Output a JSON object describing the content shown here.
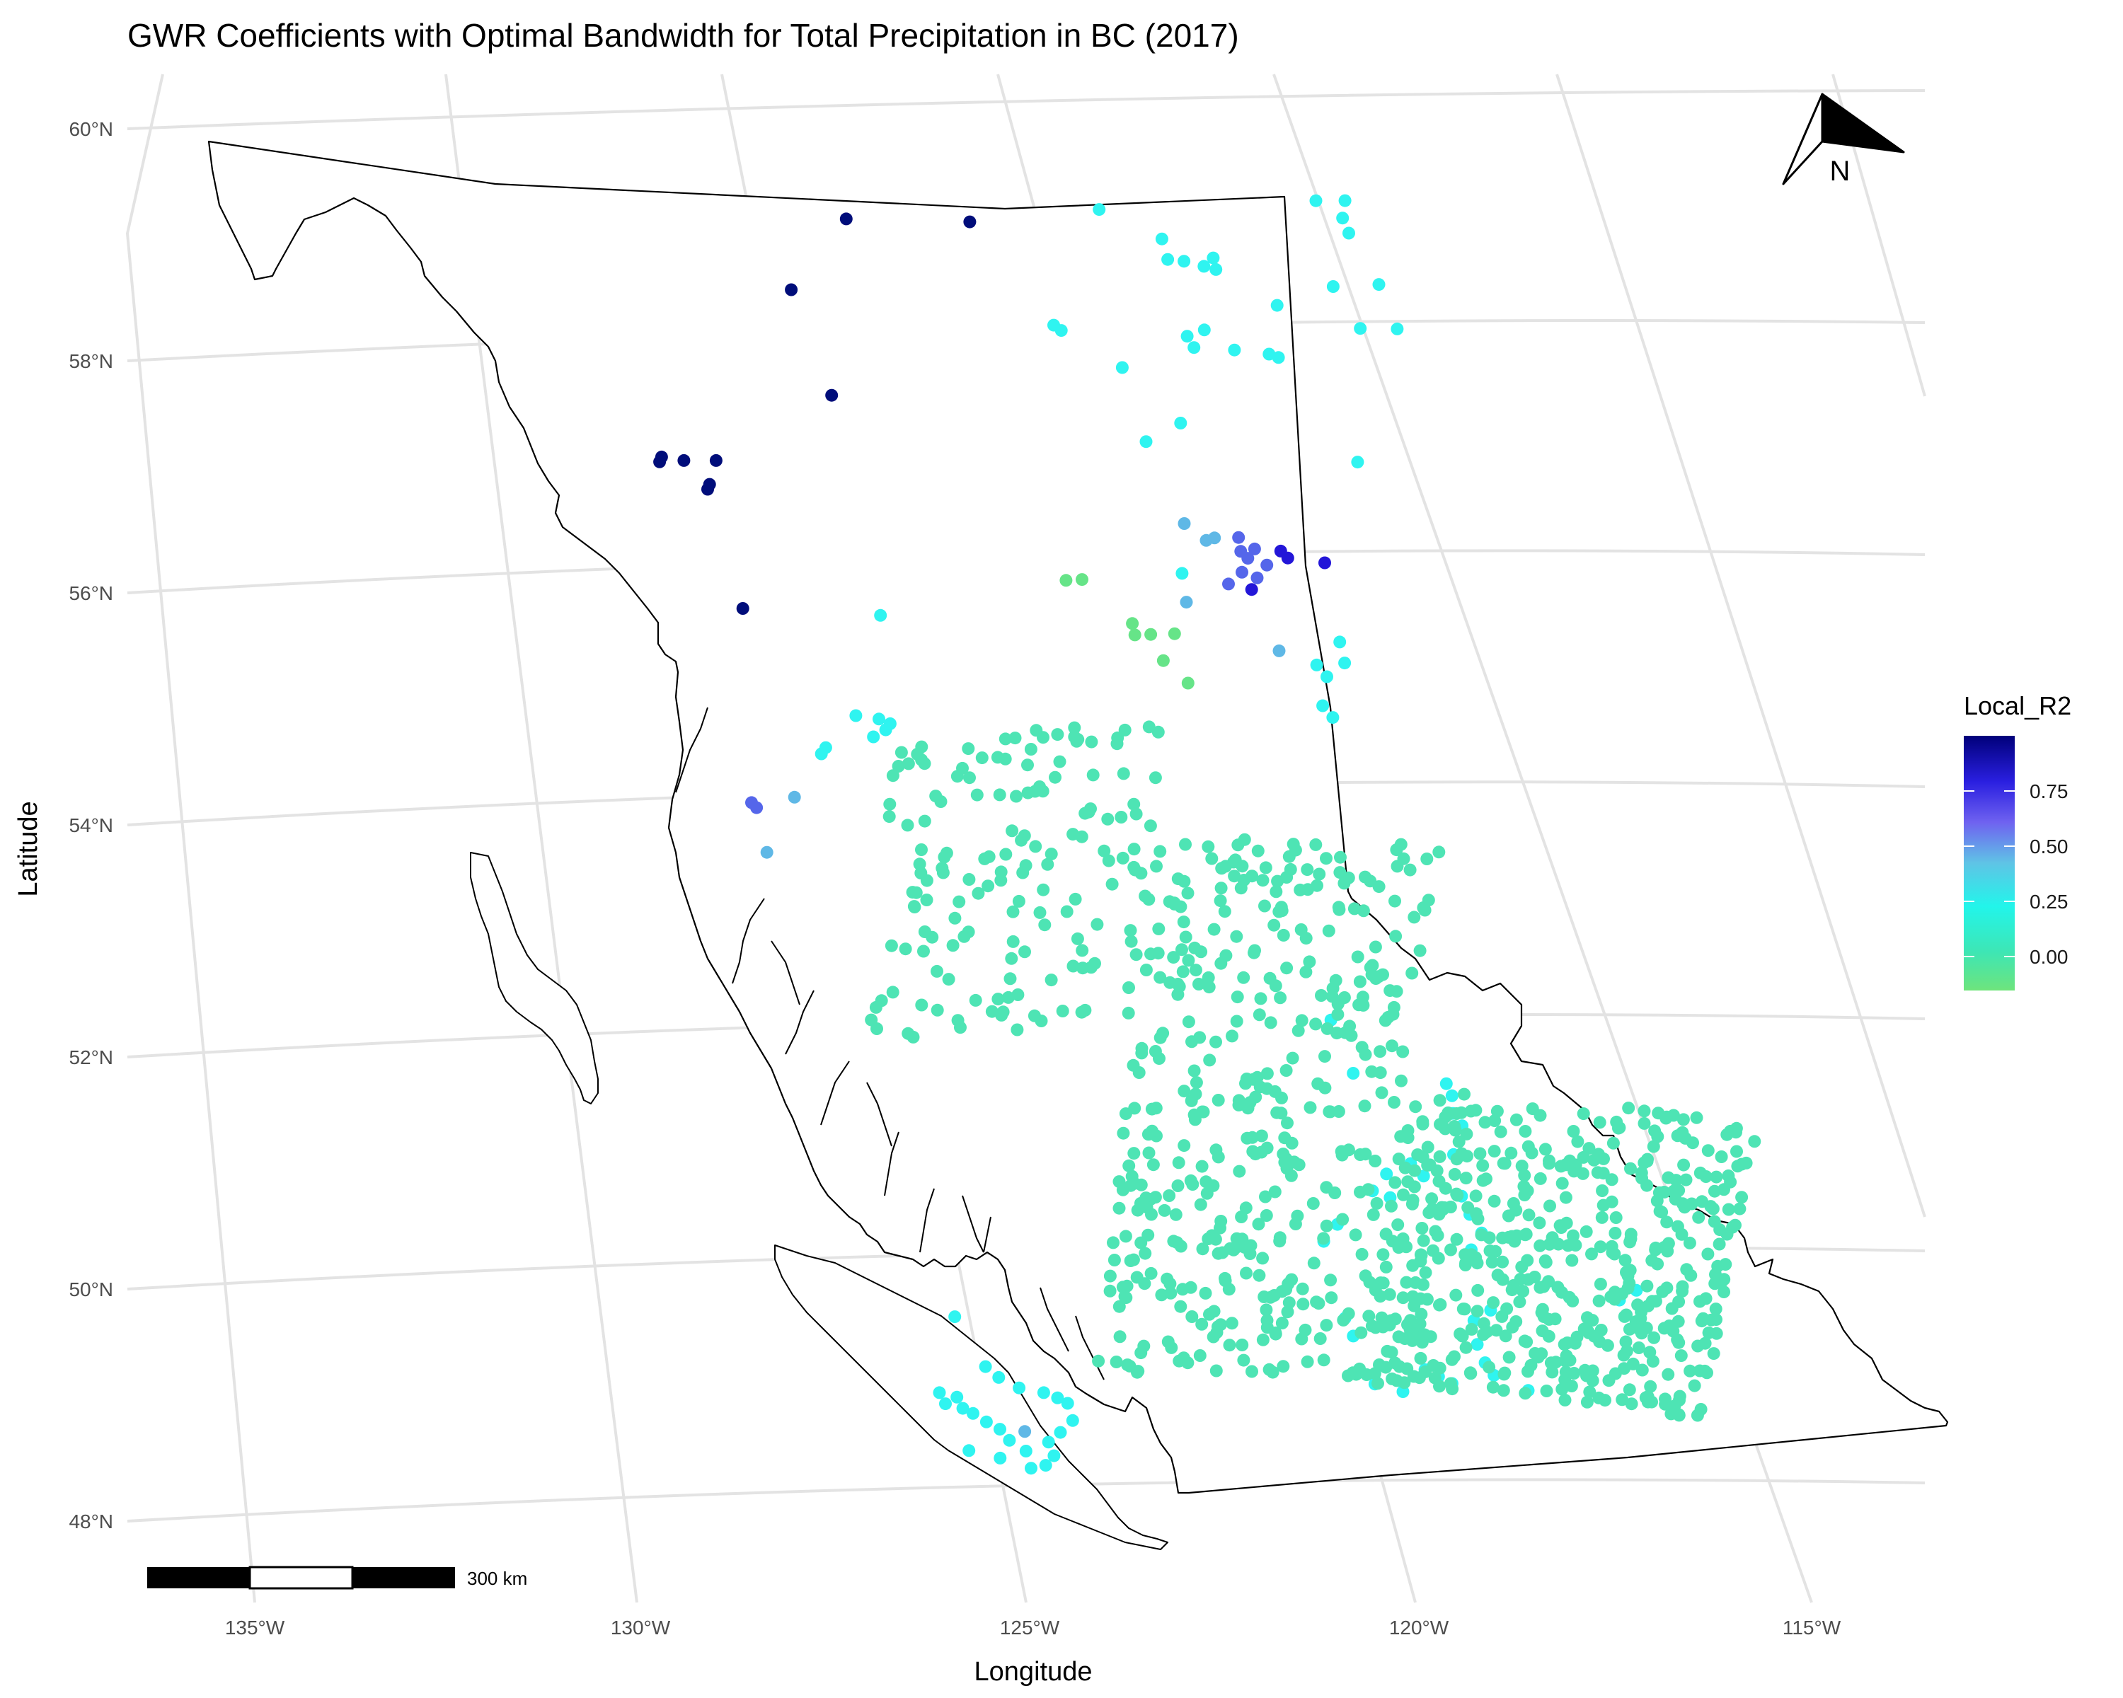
{
  "title": "GWR Coefficients with Optimal Bandwidth for Total Precipitation in BC (2017)",
  "x_axis_title": "Longitude",
  "y_axis_title": "Latitude",
  "lat_ticks": [
    "60°N",
    "58°N",
    "56°N",
    "54°N",
    "52°N",
    "50°N",
    "48°N"
  ],
  "lon_ticks": [
    "135°W",
    "130°W",
    "125°W",
    "120°W",
    "115°W"
  ],
  "legend": {
    "title": "Local_R2",
    "labels": [
      "0.75",
      "0.50",
      "0.25",
      "0.00"
    ],
    "gradient_colors": [
      "#6ee47c",
      "#3ee6b4",
      "#22f5ea",
      "#5fc4e6",
      "#6f62f0",
      "#2a1fe0",
      "#00007a"
    ]
  },
  "scale_bar": {
    "label": "300 km"
  },
  "north_arrow": {
    "label": "N"
  },
  "colors": {
    "very_high": "#000d7a",
    "high": "#2316d8",
    "mid_high": "#5566ea",
    "mid": "#5fb8e6",
    "low_mid": "#2ff4f0",
    "low": "#40e4c4",
    "zero": "#4ee4b4",
    "negative": "#66e488"
  },
  "chart_data": {
    "type": "scatter",
    "title": "GWR Coefficients with Optimal Bandwidth for Total Precipitation in BC (2017)",
    "xlabel": "Longitude",
    "ylabel": "Latitude",
    "color_variable": "Local_R2",
    "color_range": [
      -0.1,
      1.0
    ],
    "xlim": [
      -136,
      -114
    ],
    "ylim": [
      47.7,
      60.2
    ],
    "series": [
      {
        "name": "very_high",
        "points": [
          [
            -127.95,
            59.18
          ],
          [
            -126.45,
            59.05
          ],
          [
            -128.55,
            58.62
          ],
          [
            -127.95,
            57.66
          ],
          [
            -130.0,
            57.32
          ],
          [
            -130.02,
            57.28
          ],
          [
            -129.72,
            57.26
          ],
          [
            -129.32,
            57.22
          ],
          [
            -129.38,
            57.02
          ],
          [
            -129.4,
            56.98
          ],
          [
            -128.85,
            55.9
          ]
        ]
      },
      {
        "name": "high",
        "points": [
          [
            -122.05,
            56.02
          ],
          [
            -121.58,
            55.98
          ],
          [
            -122.15,
            56.08
          ],
          [
            -122.45,
            55.75
          ]
        ]
      },
      {
        "name": "mid_high",
        "points": [
          [
            -122.7,
            56.2
          ],
          [
            -122.65,
            56.08
          ],
          [
            -122.55,
            56.02
          ],
          [
            -122.6,
            55.9
          ],
          [
            -122.48,
            56.1
          ],
          [
            -122.3,
            55.96
          ],
          [
            -122.4,
            55.85
          ],
          [
            -122.75,
            55.8
          ],
          [
            -128.55,
            54.2
          ],
          [
            -128.48,
            54.15
          ]
        ]
      },
      {
        "name": "mid",
        "points": [
          [
            -123.4,
            56.33
          ],
          [
            -123.1,
            56.18
          ],
          [
            -123.0,
            56.2
          ],
          [
            -123.25,
            55.65
          ],
          [
            -128.0,
            54.2
          ],
          [
            -128.3,
            53.75
          ],
          [
            -122.0,
            55.22
          ],
          [
            -124.05,
            48.52
          ]
        ]
      },
      {
        "name": "low_mid",
        "points": [
          [
            -124.9,
            59.08
          ],
          [
            -124.1,
            58.8
          ],
          [
            -123.8,
            58.6
          ],
          [
            -123.45,
            58.62
          ],
          [
            -123.4,
            58.52
          ],
          [
            -123.55,
            58.55
          ],
          [
            -124.0,
            58.62
          ],
          [
            -122.3,
            59.1
          ],
          [
            -121.95,
            59.1
          ],
          [
            -121.95,
            58.95
          ],
          [
            -121.85,
            58.82
          ],
          [
            -121.4,
            58.38
          ],
          [
            -121.55,
            58.0
          ],
          [
            -121.1,
            58.0
          ],
          [
            -121.95,
            58.36
          ],
          [
            -122.6,
            58.2
          ],
          [
            -122.5,
            57.75
          ],
          [
            -122.62,
            57.78
          ],
          [
            -123.05,
            57.82
          ],
          [
            -123.45,
            58.0
          ],
          [
            -123.55,
            57.85
          ],
          [
            -123.65,
            57.95
          ],
          [
            -125.3,
            58.1
          ],
          [
            -125.2,
            58.05
          ],
          [
            -124.4,
            57.7
          ],
          [
            -123.6,
            57.2
          ],
          [
            -124.0,
            57.05
          ],
          [
            -121.35,
            56.85
          ],
          [
            -123.35,
            55.9
          ],
          [
            -121.25,
            55.3
          ],
          [
            -121.15,
            55.12
          ],
          [
            -121.35,
            55.0
          ],
          [
            -121.5,
            55.1
          ],
          [
            -121.2,
            54.65
          ],
          [
            -121.35,
            54.75
          ],
          [
            -127.3,
            54.85
          ],
          [
            -127.0,
            54.8
          ],
          [
            -126.85,
            54.75
          ],
          [
            -126.9,
            54.7
          ],
          [
            -127.05,
            54.65
          ],
          [
            -127.65,
            54.6
          ],
          [
            -127.7,
            54.55
          ],
          [
            -127.1,
            55.7
          ],
          [
            -120.65,
            52.05
          ],
          [
            -125.2,
            49.55
          ],
          [
            -125.3,
            48.9
          ],
          [
            -125.2,
            48.8
          ],
          [
            -125.05,
            48.85
          ],
          [
            -124.95,
            48.75
          ],
          [
            -124.8,
            48.7
          ],
          [
            -124.6,
            48.62
          ],
          [
            -124.4,
            48.55
          ],
          [
            -124.25,
            48.45
          ],
          [
            -124.0,
            48.35
          ],
          [
            -123.7,
            48.42
          ],
          [
            -123.55,
            48.5
          ],
          [
            -123.4,
            48.6
          ],
          [
            -123.6,
            48.3
          ],
          [
            -123.7,
            48.22
          ],
          [
            -123.9,
            48.2
          ],
          [
            -124.35,
            48.3
          ],
          [
            -124.8,
            48.38
          ],
          [
            -123.5,
            48.75
          ],
          [
            -123.65,
            48.8
          ],
          [
            -123.85,
            48.85
          ],
          [
            -124.2,
            48.9
          ],
          [
            -124.5,
            49.0
          ],
          [
            -124.7,
            49.1
          ],
          [
            -119.0,
            51.55
          ],
          [
            -118.9,
            51.45
          ],
          [
            -118.85,
            51.3
          ],
          [
            -118.7,
            51.2
          ],
          [
            -119.1,
            50.75
          ],
          [
            -119.3,
            50.85
          ],
          [
            -118.75,
            50.95
          ],
          [
            -118.55,
            50.6
          ],
          [
            -118.4,
            50.45
          ],
          [
            -118.2,
            50.3
          ],
          [
            -118.3,
            50.15
          ],
          [
            -117.9,
            49.65
          ],
          [
            -118.1,
            49.55
          ],
          [
            -118.0,
            49.35
          ],
          [
            -117.85,
            49.2
          ],
          [
            -117.7,
            49.1
          ],
          [
            -118.25,
            49.0
          ],
          [
            -118.45,
            49.05
          ],
          [
            -118.65,
            49.1
          ],
          [
            -119.6,
            50.75
          ],
          [
            -119.75,
            50.6
          ],
          [
            -119.5,
            50.55
          ],
          [
            -120.15,
            50.3
          ],
          [
            -120.3,
            50.15
          ],
          [
            -119.85,
            49.5
          ],
          [
            -119.7,
            49.35
          ],
          [
            -119.3,
            48.95
          ],
          [
            -118.9,
            48.9
          ],
          [
            -120.25,
            51.6
          ],
          [
            -117.2,
            49.0
          ],
          [
            -116.0,
            49.95
          ],
          [
            -116.2,
            49.85
          ]
        ]
      },
      {
        "name": "negative",
        "points": [
          [
            -124.8,
            55.88
          ],
          [
            -124.6,
            55.88
          ],
          [
            -123.9,
            55.48
          ],
          [
            -123.85,
            55.38
          ],
          [
            -123.65,
            55.38
          ],
          [
            -123.35,
            55.38
          ],
          [
            -123.1,
            54.95
          ],
          [
            -123.45,
            55.15
          ]
        ]
      }
    ]
  }
}
